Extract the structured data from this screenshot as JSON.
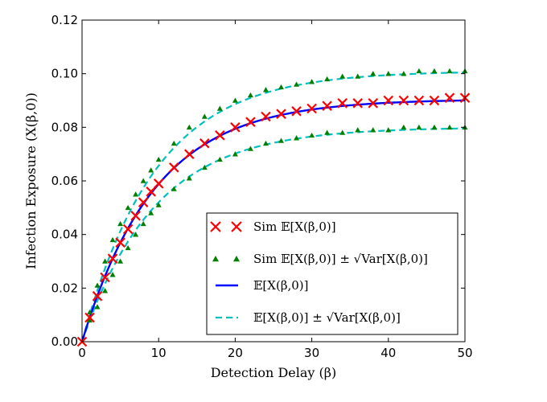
{
  "chart_data": {
    "type": "line",
    "title": "",
    "xlabel": "Detection Delay (β)",
    "ylabel": "Infection Exposure (X(β,0))",
    "xlim": [
      0,
      50
    ],
    "ylim": [
      0,
      0.12
    ],
    "xticks": [
      "0",
      "10",
      "20",
      "30",
      "40",
      "50"
    ],
    "yticks": [
      "0.00",
      "0.02",
      "0.04",
      "0.06",
      "0.08",
      "0.10",
      "0.12"
    ],
    "grid": false,
    "legend_position": "lower-right",
    "model": {
      "mean_asymptote": 0.0905,
      "std_asymptote": 0.0105,
      "rate": 0.105
    },
    "series": [
      {
        "name": "Sim 𝔼[X(β,0)]",
        "style": "marker-x",
        "color": "#ff0000",
        "x": [
          0,
          1,
          2,
          3,
          4,
          5,
          6,
          7,
          8,
          9,
          10,
          12,
          14,
          16,
          18,
          20,
          22,
          24,
          26,
          28,
          30,
          32,
          34,
          36,
          38,
          40,
          42,
          44,
          46,
          48,
          50
        ],
        "y": [
          0.0,
          0.009,
          0.017,
          0.024,
          0.031,
          0.037,
          0.042,
          0.047,
          0.052,
          0.056,
          0.059,
          0.065,
          0.07,
          0.074,
          0.077,
          0.08,
          0.082,
          0.084,
          0.085,
          0.086,
          0.087,
          0.088,
          0.089,
          0.089,
          0.089,
          0.09,
          0.09,
          0.09,
          0.09,
          0.091,
          0.091
        ]
      },
      {
        "name": "Sim 𝔼[X(β,0)] ± √Var[X(β,0)]",
        "style": "marker-triangle",
        "color": "#008000",
        "x": [
          1,
          2,
          3,
          4,
          5,
          6,
          7,
          8,
          9,
          10,
          12,
          14,
          16,
          18,
          20,
          22,
          24,
          26,
          28,
          30,
          32,
          34,
          36,
          38,
          40,
          42,
          44,
          46,
          48,
          50
        ],
        "y_upper": [
          0.011,
          0.021,
          0.03,
          0.038,
          0.044,
          0.05,
          0.055,
          0.06,
          0.064,
          0.068,
          0.074,
          0.08,
          0.084,
          0.087,
          0.09,
          0.092,
          0.094,
          0.095,
          0.096,
          0.097,
          0.098,
          0.099,
          0.099,
          0.1,
          0.1,
          0.1,
          0.101,
          0.101,
          0.101,
          0.101
        ],
        "y_lower": [
          0.008,
          0.013,
          0.019,
          0.025,
          0.03,
          0.035,
          0.04,
          0.044,
          0.048,
          0.051,
          0.057,
          0.061,
          0.065,
          0.068,
          0.07,
          0.072,
          0.074,
          0.075,
          0.076,
          0.077,
          0.078,
          0.078,
          0.079,
          0.079,
          0.079,
          0.08,
          0.08,
          0.08,
          0.08,
          0.08
        ]
      },
      {
        "name": "𝔼[X(β,0)]",
        "style": "solid-line",
        "color": "#0000ff"
      },
      {
        "name": "𝔼[X(β,0)] ± √Var[X(β,0)]",
        "style": "dashed-line",
        "color": "#00bfbf"
      }
    ]
  }
}
